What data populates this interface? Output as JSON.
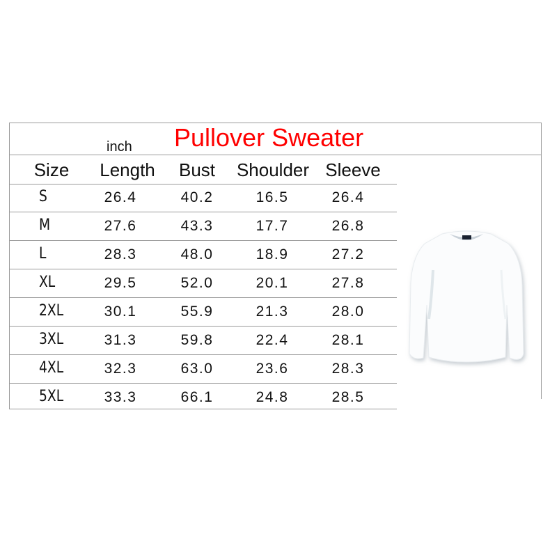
{
  "title": "Pullover Sweater",
  "unit": "inch",
  "colors": {
    "title": "#ff0000",
    "rules": "#9a9a9a"
  },
  "headers": [
    "Size",
    "Length",
    "Bust",
    "Shoulder",
    "Sleeve"
  ],
  "rows": [
    [
      "S",
      "26.4",
      "40.2",
      "16.5",
      "26.4"
    ],
    [
      "M",
      "27.6",
      "43.3",
      "17.7",
      "26.8"
    ],
    [
      "L",
      "28.3",
      "48.0",
      "18.9",
      "27.2"
    ],
    [
      "XL",
      "29.5",
      "52.0",
      "20.1",
      "27.8"
    ],
    [
      "2XL",
      "30.1",
      "55.9",
      "21.3",
      "28.0"
    ],
    [
      "3XL",
      "31.3",
      "59.8",
      "22.4",
      "28.1"
    ],
    [
      "4XL",
      "32.3",
      "63.0",
      "23.6",
      "28.3"
    ],
    [
      "5XL",
      "33.3",
      "66.1",
      "24.8",
      "28.5"
    ]
  ],
  "image": "white-crewneck-sweatshirt"
}
